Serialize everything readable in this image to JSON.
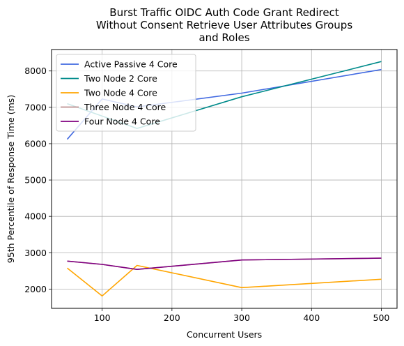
{
  "chart_data": {
    "type": "line",
    "title_lines": [
      "Burst Traffic OIDC Auth Code Grant Redirect",
      "Without Consent Retrieve User Attributes Groups",
      "and Roles"
    ],
    "xlabel": "Concurrent Users",
    "ylabel": "95th Percentile of Response Time (ms)",
    "xlim": [
      27.5,
      522.5
    ],
    "ylim": [
      1470,
      8590
    ],
    "xticks": [
      100,
      200,
      300,
      400,
      500
    ],
    "yticks": [
      2000,
      3000,
      4000,
      5000,
      6000,
      7000,
      8000
    ],
    "grid": true,
    "legend_position": "upper-left",
    "series": [
      {
        "name": "Active Passive 4 Core",
        "color": "#4169e1",
        "x": [
          50,
          100,
          150,
          300,
          500
        ],
        "y": [
          6120,
          7230,
          7010,
          7390,
          8040
        ]
      },
      {
        "name": "Two Node 2 Core",
        "color": "#008b8b",
        "x": [
          50,
          100,
          150,
          300,
          500
        ],
        "y": [
          7100,
          6760,
          6420,
          7290,
          8260
        ]
      },
      {
        "name": "Two Node 4 Core",
        "color": "#ffa500",
        "x": [
          50,
          100,
          150,
          300,
          500
        ],
        "y": [
          2580,
          1810,
          2650,
          2040,
          2270
        ]
      },
      {
        "name": "Three Node 4 Core",
        "color": "#bc8f8f",
        "x": [
          50,
          100,
          150,
          300,
          500
        ],
        "y": [
          2770,
          2680,
          2540,
          2800,
          2850
        ]
      },
      {
        "name": "Four Node 4 Core",
        "color": "#800080",
        "x": [
          50,
          100,
          150,
          300,
          500
        ],
        "y": [
          2770,
          2680,
          2540,
          2800,
          2850
        ]
      }
    ]
  }
}
